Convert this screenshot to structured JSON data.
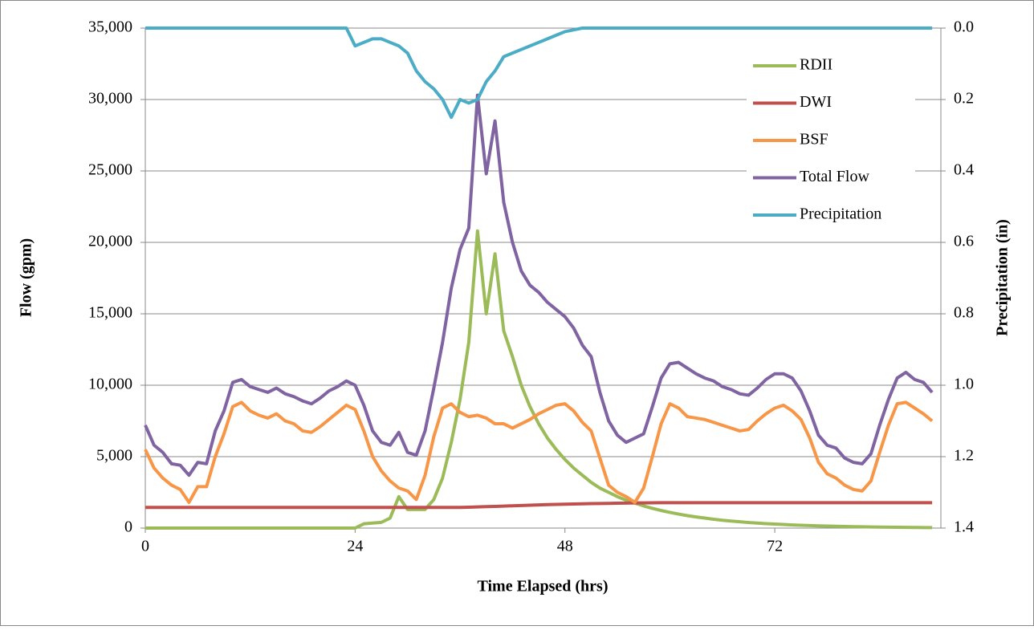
{
  "chart_data": {
    "type": "line",
    "xlabel": "Time Elapsed (hrs)",
    "ylabel": "Flow (gpm)",
    "y2label": "Precipitation (in)",
    "x": [
      0,
      1,
      2,
      3,
      4,
      5,
      6,
      7,
      8,
      9,
      10,
      11,
      12,
      13,
      14,
      15,
      16,
      17,
      18,
      19,
      20,
      21,
      22,
      23,
      24,
      25,
      26,
      27,
      28,
      29,
      30,
      31,
      32,
      33,
      34,
      35,
      36,
      37,
      38,
      39,
      40,
      41,
      42,
      43,
      44,
      45,
      46,
      47,
      48,
      49,
      50,
      51,
      52,
      53,
      54,
      55,
      56,
      57,
      58,
      59,
      60,
      61,
      62,
      63,
      64,
      65,
      66,
      67,
      68,
      69,
      70,
      71,
      72,
      73,
      74,
      75,
      76,
      77,
      78,
      79,
      80,
      81,
      82,
      83,
      84,
      85,
      86,
      87,
      88,
      89,
      90
    ],
    "xlim": [
      0,
      91
    ],
    "xticks": [
      0,
      24,
      48,
      72
    ],
    "ylim": [
      0,
      35000
    ],
    "yticks": [
      0,
      {
        "value": 5000,
        "label": "5,000"
      },
      {
        "value": 10000,
        "label": "10,000"
      },
      {
        "value": 15000,
        "label": "15,000"
      },
      {
        "value": 20000,
        "label": "20,000"
      },
      {
        "value": 25000,
        "label": "25,000"
      },
      {
        "value": 30000,
        "label": "30,000"
      },
      {
        "value": 35000,
        "label": "35,000"
      }
    ],
    "y2lim": [
      1.4,
      0
    ],
    "y2ticks": [
      {
        "value": 0,
        "label": "0.0"
      },
      0.2,
      0.4,
      0.6,
      0.8,
      {
        "value": 1,
        "label": "1.0"
      },
      1.2,
      1.4
    ],
    "grid": true,
    "legend": "upper right",
    "series": [
      {
        "name": "RDII",
        "color": "#9bbb59",
        "values": [
          0,
          0,
          0,
          0,
          0,
          0,
          0,
          0,
          0,
          0,
          0,
          0,
          0,
          0,
          0,
          0,
          0,
          0,
          0,
          0,
          0,
          0,
          0,
          0,
          0,
          300,
          350,
          400,
          700,
          2200,
          1300,
          1300,
          1300,
          2000,
          3500,
          6000,
          9000,
          13000,
          20800,
          15000,
          19200,
          13800,
          12000,
          10000,
          8500,
          7300,
          6300,
          5500,
          4800,
          4200,
          3700,
          3200,
          2800,
          2500,
          2200,
          1950,
          1750,
          1550,
          1380,
          1230,
          1100,
          980,
          870,
          780,
          700,
          620,
          550,
          490,
          440,
          390,
          350,
          310,
          280,
          250,
          220,
          195,
          175,
          155,
          140,
          125,
          110,
          100,
          90,
          80,
          70,
          62,
          55,
          48,
          42,
          37,
          33
        ]
      },
      {
        "name": "DWI",
        "color": "#c0504d",
        "values": [
          1450,
          1450,
          1450,
          1450,
          1450,
          1450,
          1450,
          1450,
          1450,
          1450,
          1450,
          1450,
          1450,
          1450,
          1450,
          1450,
          1450,
          1450,
          1450,
          1450,
          1450,
          1450,
          1450,
          1450,
          1450,
          1450,
          1450,
          1450,
          1450,
          1450,
          1450,
          1450,
          1450,
          1450,
          1450,
          1450,
          1450,
          1460,
          1480,
          1500,
          1520,
          1540,
          1560,
          1580,
          1600,
          1620,
          1640,
          1655,
          1670,
          1685,
          1700,
          1710,
          1720,
          1730,
          1740,
          1750,
          1760,
          1765,
          1770,
          1775,
          1780,
          1780,
          1780,
          1780,
          1780,
          1780,
          1780,
          1780,
          1780,
          1780,
          1780,
          1780,
          1780,
          1780,
          1780,
          1780,
          1780,
          1780,
          1780,
          1780,
          1780,
          1780,
          1780,
          1780,
          1780,
          1780,
          1780,
          1780,
          1780,
          1780,
          1780
        ]
      },
      {
        "name": "BSF",
        "color": "#f79646",
        "values": [
          5500,
          4200,
          3500,
          3000,
          2700,
          1800,
          2900,
          2900,
          5000,
          6600,
          8500,
          8800,
          8200,
          7900,
          7700,
          8000,
          7500,
          7300,
          6800,
          6700,
          7100,
          7600,
          8100,
          8600,
          8300,
          6800,
          5000,
          4000,
          3300,
          2800,
          2600,
          2000,
          3700,
          6400,
          8400,
          8700,
          8100,
          7800,
          7900,
          7700,
          7300,
          7300,
          7000,
          7300,
          7600,
          8000,
          8300,
          8600,
          8700,
          8200,
          7400,
          6800,
          4900,
          3000,
          2500,
          2200,
          1800,
          2800,
          5000,
          7300,
          8700,
          8400,
          7800,
          7700,
          7600,
          7400,
          7200,
          7000,
          6800,
          6900,
          7500,
          8000,
          8400,
          8600,
          8200,
          7600,
          6300,
          4600,
          3800,
          3500,
          3000,
          2700,
          2600,
          3300,
          5300,
          7200,
          8700,
          8800,
          8400,
          8000,
          7500
        ]
      },
      {
        "name": "Total Flow",
        "color": "#8064a2",
        "values": [
          7200,
          5800,
          5300,
          4500,
          4400,
          3700,
          4600,
          4500,
          6800,
          8200,
          10200,
          10400,
          9900,
          9700,
          9500,
          9800,
          9400,
          9200,
          8900,
          8700,
          9100,
          9600,
          9900,
          10300,
          10000,
          8600,
          6800,
          6000,
          5800,
          6700,
          5300,
          5100,
          6800,
          9800,
          13000,
          16800,
          19500,
          21000,
          30300,
          24800,
          28500,
          22800,
          20000,
          18000,
          17000,
          16500,
          15800,
          15300,
          14800,
          14000,
          12800,
          12000,
          9500,
          7500,
          6500,
          6000,
          6300,
          6600,
          8500,
          10500,
          11500,
          11600,
          11200,
          10800,
          10500,
          10300,
          9900,
          9700,
          9400,
          9300,
          9800,
          10400,
          10800,
          10800,
          10500,
          9600,
          8200,
          6500,
          5800,
          5600,
          4900,
          4600,
          4500,
          5200,
          7200,
          9000,
          10500,
          10900,
          10400,
          10200,
          9500
        ]
      },
      {
        "name": "Precipitation",
        "color": "#4bacc6",
        "axis": "y2",
        "values": [
          0,
          0,
          0,
          0,
          0,
          0,
          0,
          0,
          0,
          0,
          0,
          0,
          0,
          0,
          0,
          0,
          0,
          0,
          0,
          0,
          0,
          0,
          0,
          0,
          0.05,
          0.04,
          0.03,
          0.03,
          0.04,
          0.05,
          0.07,
          0.12,
          0.15,
          0.17,
          0.2,
          0.25,
          0.2,
          0.21,
          0.2,
          0.15,
          0.12,
          0.08,
          0.07,
          0.06,
          0.05,
          0.04,
          0.03,
          0.02,
          0.01,
          0.005,
          0,
          0,
          0,
          0,
          0,
          0,
          0,
          0,
          0,
          0,
          0,
          0,
          0,
          0,
          0,
          0,
          0,
          0,
          0,
          0,
          0,
          0,
          0,
          0,
          0,
          0,
          0,
          0,
          0,
          0,
          0,
          0,
          0,
          0,
          0,
          0,
          0,
          0,
          0,
          0,
          0
        ]
      }
    ]
  }
}
